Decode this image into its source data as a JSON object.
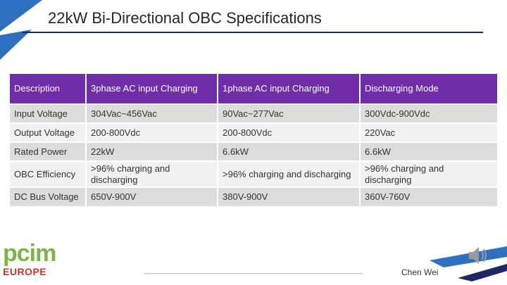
{
  "slide": {
    "title": "22kW Bi-Directional OBC Specifications"
  },
  "table": {
    "headers": [
      "Description",
      "3phase AC input Charging",
      "1phase AC input Charging",
      "Discharging Mode"
    ],
    "rows": [
      [
        "Input Voltage",
        "304Vac~456Vac",
        "90Vac~277Vac",
        "300Vdc-900Vdc"
      ],
      [
        "Output Voltage",
        "200-800Vdc",
        "200-800Vdc",
        "220Vac"
      ],
      [
        "Rated Power",
        "22kW",
        "6.6kW",
        "6.6kW"
      ],
      [
        "OBC Efficiency",
        ">96% charging and discharging",
        ">96% charging and discharging",
        ">96% charging and discharging"
      ],
      [
        "DC Bus Voltage",
        "650V-900V",
        "380V-900V",
        "360V-760V"
      ]
    ]
  },
  "logo": {
    "main": "pcim",
    "sub": "EUROPE"
  },
  "footer": {
    "presenter": "Chen Wei"
  },
  "colors": {
    "header_bg": "#6f2da8",
    "accent_blue": "#2e6fbf",
    "rule": "#1e2761",
    "logo_green": "#7fb34a",
    "logo_red": "#c0392b"
  },
  "icons": {
    "speaker": "speaker-icon"
  }
}
